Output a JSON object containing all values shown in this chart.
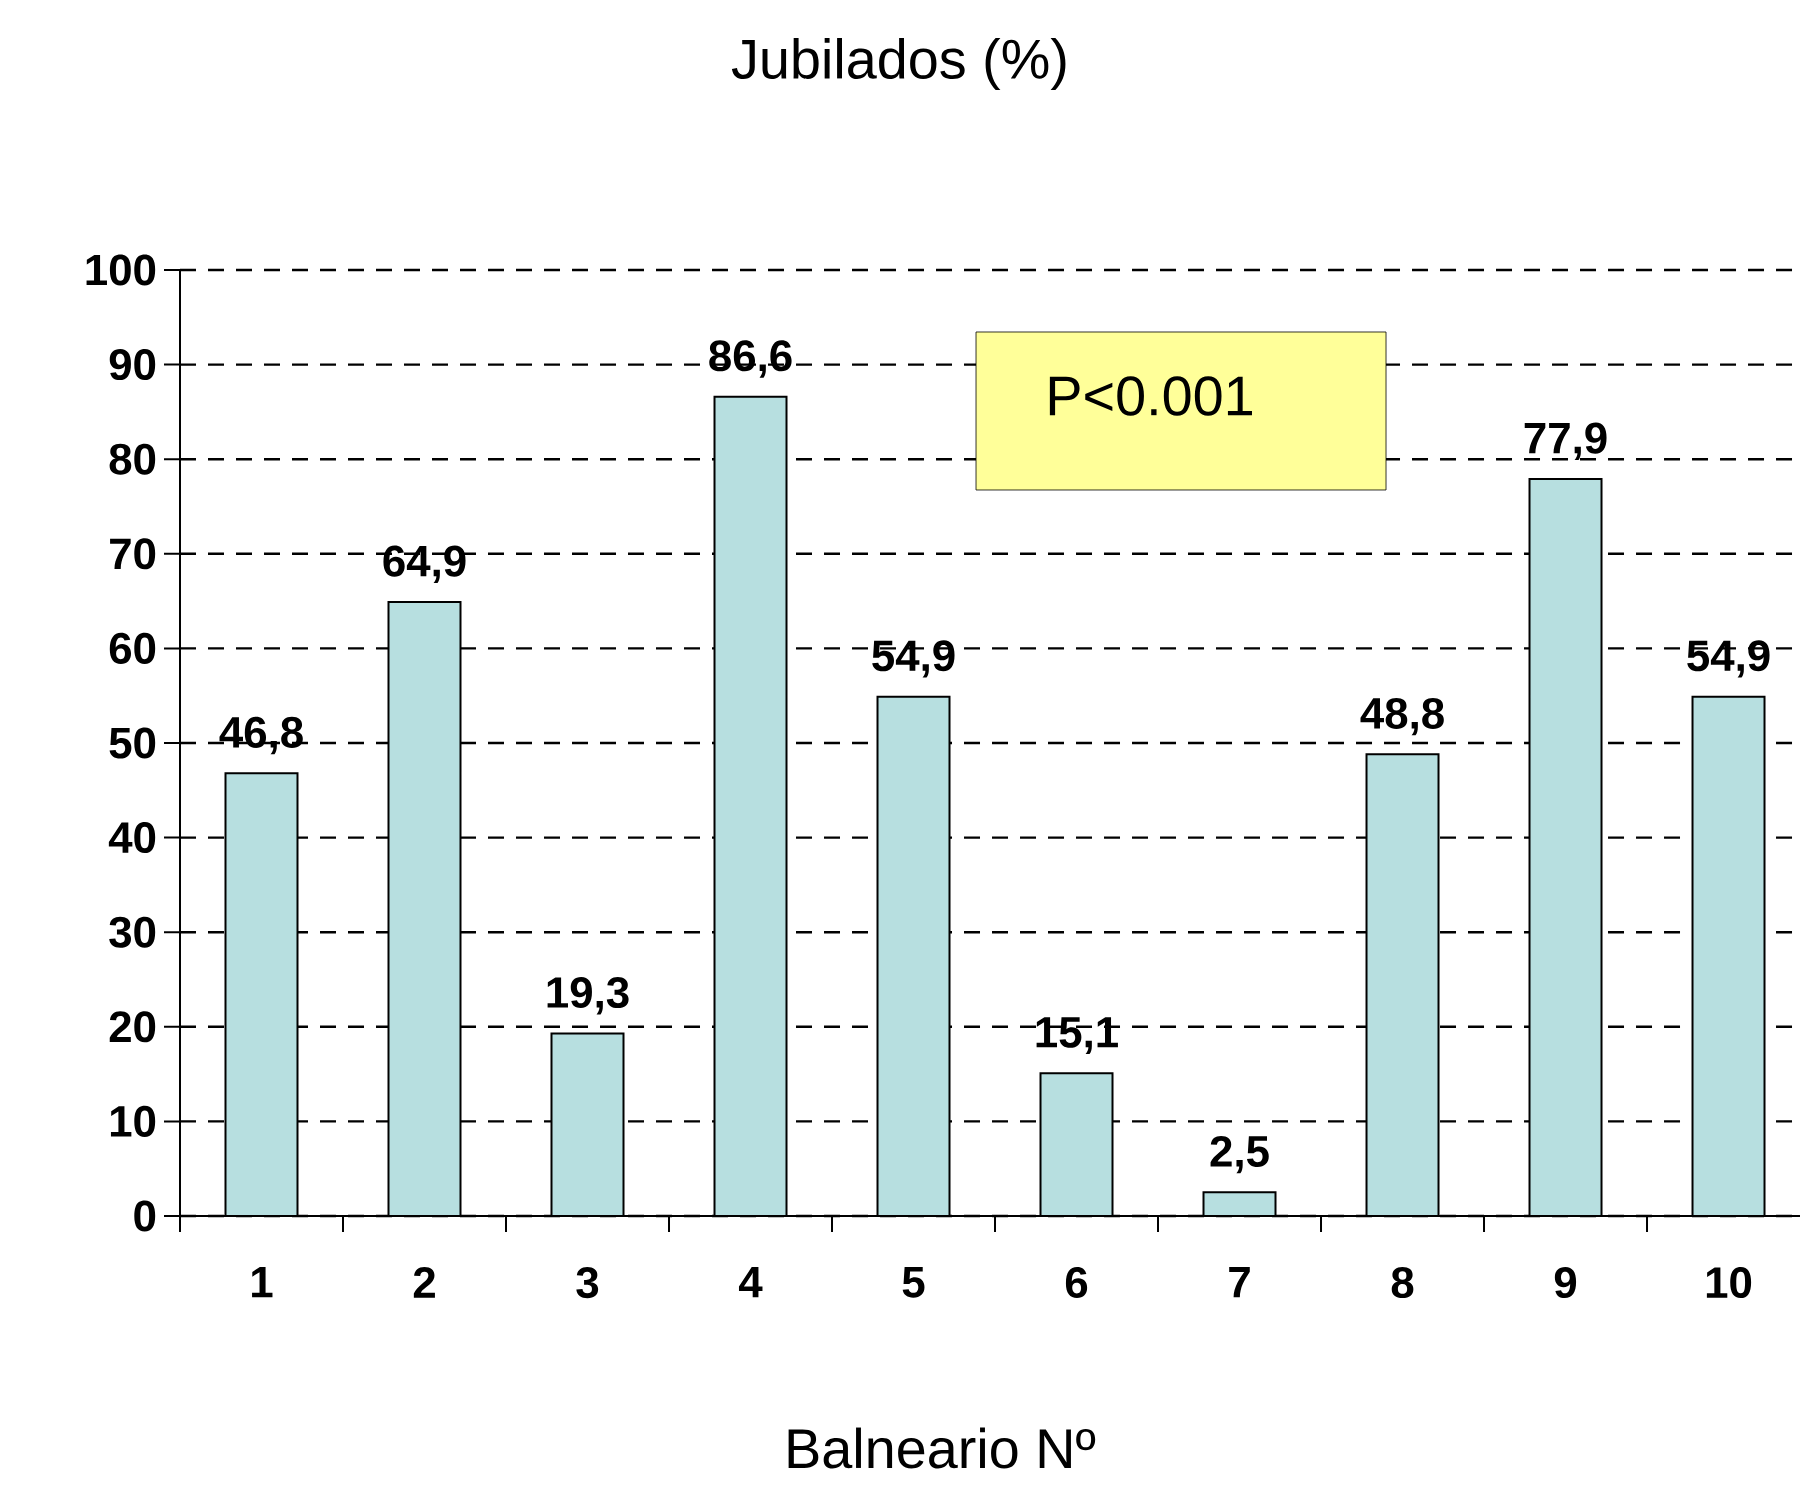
{
  "chart_data": {
    "type": "bar",
    "title": "Jubilados (%)",
    "xlabel": "Balneario Nº",
    "categories": [
      "1",
      "2",
      "3",
      "4",
      "5",
      "6",
      "7",
      "8",
      "9",
      "10"
    ],
    "values": [
      46.8,
      64.9,
      19.3,
      86.6,
      54.9,
      15.1,
      2.5,
      48.8,
      77.9,
      54.9
    ],
    "value_labels": [
      "46,8",
      "64,9",
      "19,3",
      "86,6",
      "54,9",
      "15,1",
      "2,5",
      "48,8",
      "77,9",
      "54,9"
    ],
    "color": "#b7dfe0",
    "ylim": [
      0,
      100
    ],
    "yticks": [
      0,
      10,
      20,
      30,
      40,
      50,
      60,
      70,
      80,
      90,
      100
    ],
    "grid": "y",
    "annotations": [
      "P<0.001"
    ]
  }
}
